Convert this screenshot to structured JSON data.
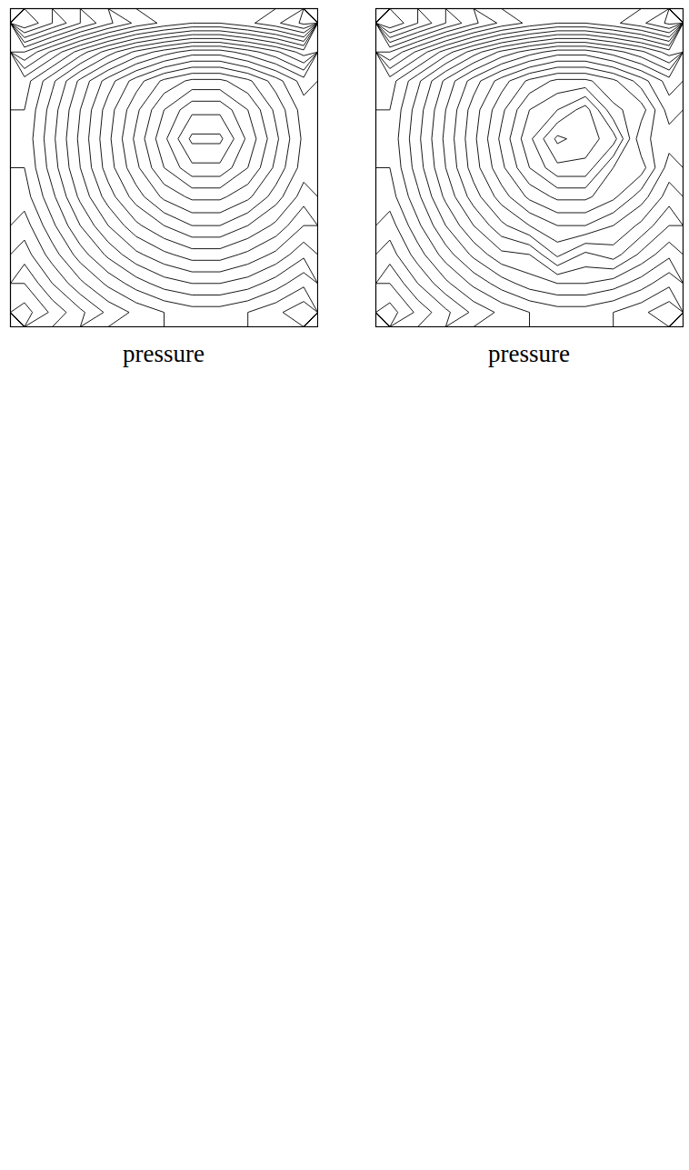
{
  "chart_data": [
    {
      "type": "contour",
      "caption": "pressure",
      "tick_labels": false,
      "xlim": [
        0,
        1
      ],
      "ylim": [
        0,
        1
      ],
      "color": "#000000",
      "contour_levels": [
        0.6,
        1.0,
        1.4,
        1.8,
        2.2,
        2.6,
        3.0,
        3.4,
        3.8,
        4.2,
        4.6,
        5.0,
        5.4,
        5.8,
        6.2,
        6.6,
        7.0,
        7.4,
        7.8,
        8.2,
        8.6,
        9.0,
        9.4,
        9.8,
        10.2
      ],
      "grid_rows": [
        [
          10.6,
          9.8,
          9.0,
          8.3,
          7.7,
          7.3,
          7.0,
          7.0,
          7.3,
          7.7,
          8.3
        ],
        [
          8.2,
          7.3,
          6.4,
          5.6,
          4.9,
          4.4,
          4.0,
          4.0,
          4.4,
          4.9,
          5.6
        ],
        [
          6.8,
          5.9,
          4.9,
          4.0,
          3.2,
          2.5,
          2.1,
          2.1,
          2.5,
          3.2,
          4.0
        ],
        [
          6.6,
          5.6,
          4.6,
          3.6,
          2.7,
          1.8,
          1.1,
          1.1,
          1.8,
          2.7,
          3.6
        ],
        [
          6.5,
          5.5,
          4.5,
          3.5,
          2.5,
          1.5,
          0.5,
          0.5,
          1.5,
          2.5,
          3.5
        ],
        [
          6.6,
          5.6,
          4.6,
          3.6,
          2.7,
          1.8,
          1.1,
          1.1,
          1.8,
          2.7,
          3.6
        ],
        [
          6.8,
          5.9,
          4.9,
          4.0,
          3.2,
          2.5,
          2.1,
          2.1,
          2.5,
          3.2,
          4.0
        ],
        [
          7.2,
          6.3,
          5.4,
          4.6,
          3.9,
          3.4,
          3.0,
          3.0,
          3.4,
          3.9,
          4.6
        ],
        [
          7.6,
          6.8,
          6.0,
          5.3,
          4.7,
          4.3,
          4.0,
          4.0,
          4.3,
          4.7,
          5.3
        ],
        [
          8.2,
          7.4,
          6.7,
          6.1,
          5.6,
          5.2,
          5.0,
          5.0,
          5.2,
          5.6,
          6.1
        ],
        [
          8.8,
          8.1,
          7.5,
          6.9,
          6.5,
          6.2,
          6.0,
          6.0,
          6.2,
          6.5,
          6.9
        ]
      ]
    },
    {
      "type": "contour",
      "caption": "pressure",
      "tick_labels": false,
      "xlim": [
        0,
        1
      ],
      "ylim": [
        0,
        1
      ],
      "color": "#000000",
      "contour_levels": [
        0.6,
        1.0,
        1.4,
        1.8,
        2.2,
        2.6,
        3.0,
        3.4,
        3.8,
        4.2,
        4.6,
        5.0,
        5.4,
        5.8,
        6.2,
        6.6,
        7.0,
        7.4,
        7.8,
        8.2,
        8.6,
        9.0,
        9.4,
        9.8,
        10.2
      ],
      "grid_rows": [
        [
          10.6,
          9.8,
          9.0,
          8.3,
          7.7,
          7.3,
          7.0,
          7.0,
          7.3,
          7.7,
          8.3
        ],
        [
          8.2,
          7.3,
          6.4,
          5.6,
          4.9,
          4.4,
          4.0,
          4.0,
          4.4,
          4.9,
          5.6
        ],
        [
          6.8,
          5.9,
          4.9,
          4.0,
          3.2,
          2.5,
          2.1,
          2.1,
          2.5,
          3.2,
          4.0
        ],
        [
          6.6,
          5.6,
          4.6,
          3.6,
          2.7,
          1.8,
          1.4,
          0.8,
          2.1,
          2.4,
          3.6
        ],
        [
          6.5,
          5.5,
          4.5,
          3.5,
          2.5,
          1.5,
          0.5,
          0.8,
          1.2,
          2.9,
          3.2
        ],
        [
          6.6,
          5.6,
          4.6,
          3.6,
          2.7,
          1.8,
          1.1,
          1.1,
          2.2,
          2.4,
          3.6
        ],
        [
          6.8,
          5.9,
          4.9,
          4.0,
          3.2,
          2.5,
          2.1,
          2.1,
          2.5,
          3.2,
          4.0
        ],
        [
          7.2,
          6.3,
          5.4,
          4.6,
          3.9,
          3.4,
          3.0,
          3.0,
          3.4,
          3.9,
          4.6
        ],
        [
          7.6,
          6.8,
          6.0,
          5.3,
          4.7,
          4.6,
          3.7,
          4.3,
          4.0,
          4.7,
          5.3
        ],
        [
          8.2,
          7.4,
          6.7,
          6.1,
          5.6,
          5.2,
          5.0,
          5.0,
          5.2,
          5.6,
          6.1
        ],
        [
          8.8,
          8.1,
          7.5,
          6.9,
          6.5,
          6.2,
          6.0,
          6.0,
          6.2,
          6.5,
          6.9
        ]
      ]
    }
  ]
}
